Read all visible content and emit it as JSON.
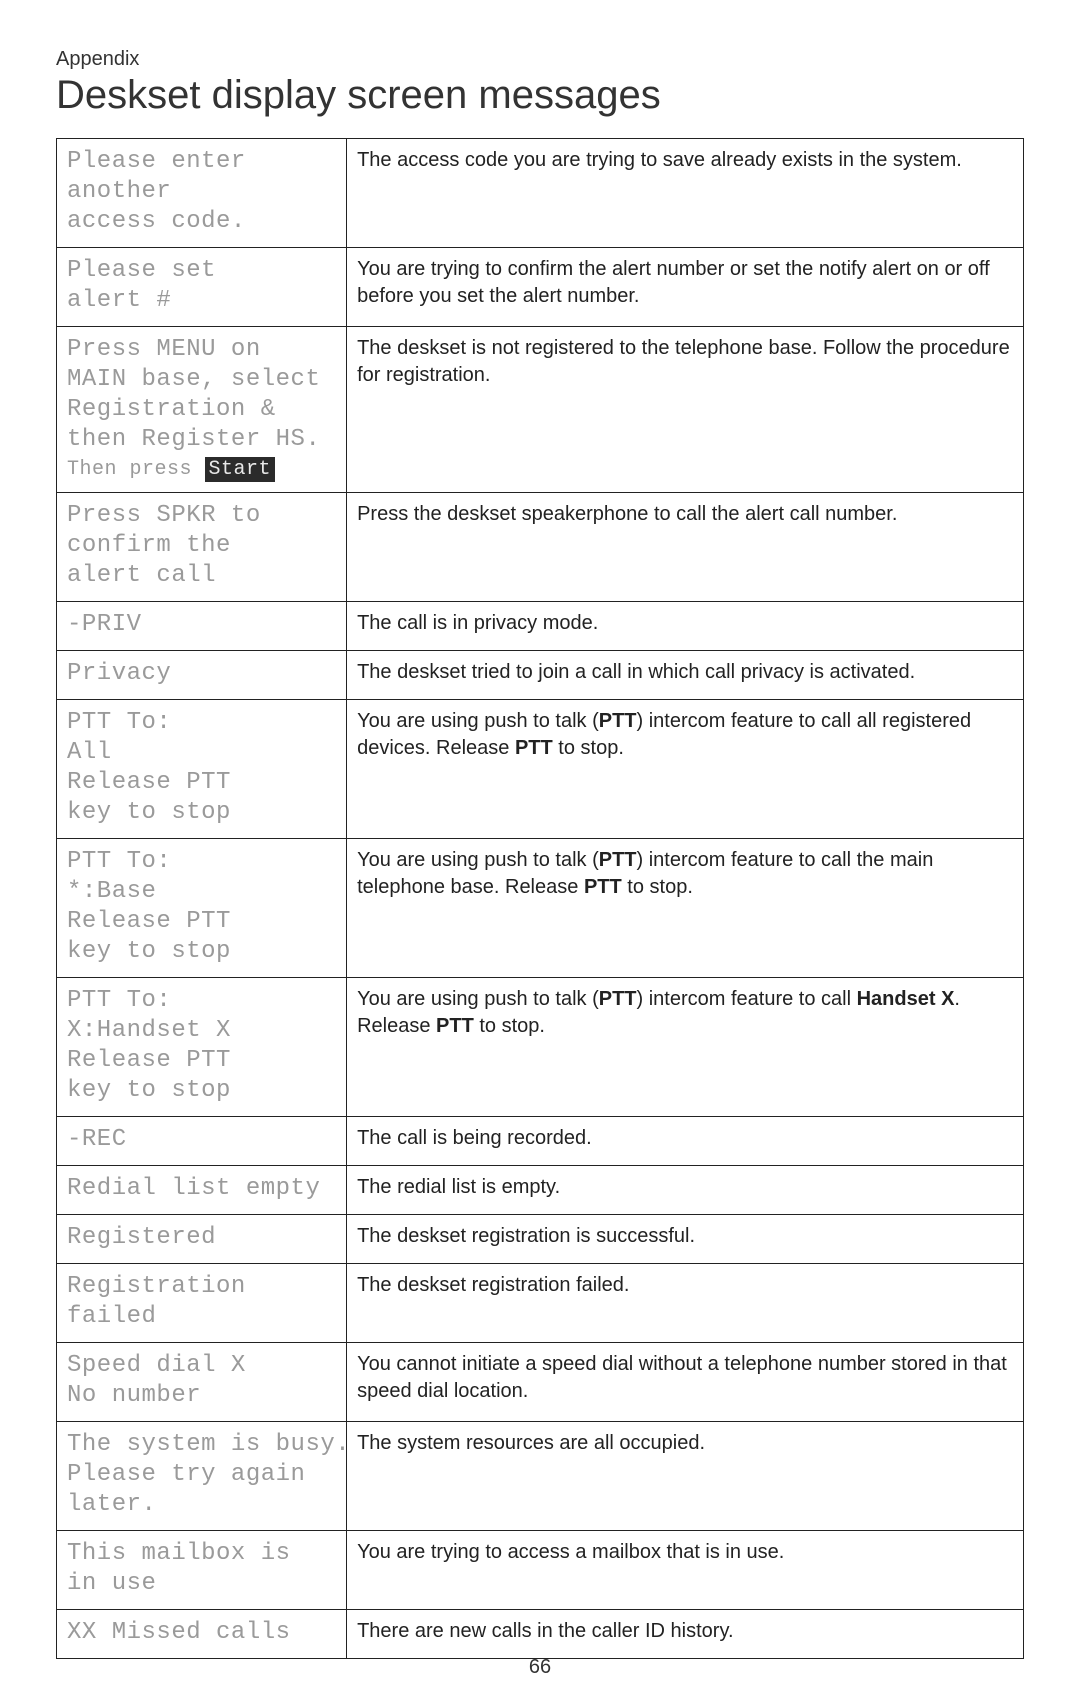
{
  "header": {
    "section_label": "Appendix",
    "page_title": "Deskset display screen messages"
  },
  "page_number": "66",
  "colors": {
    "text": "#222222",
    "lcd_text": "#9a9a9a",
    "border": "#222222",
    "inverse_bg": "#2b2b2b",
    "inverse_text": "#e8e8e8",
    "background": "#ffffff"
  },
  "typography": {
    "title_fontsize_pt": 30,
    "body_fontsize_pt": 15,
    "lcd_fontsize_pt": 18,
    "lcd_font_family": "Courier New (dot-matrix style)",
    "body_font_family": "Helvetica"
  },
  "table": {
    "column_widths_pct": [
      30,
      70
    ],
    "rows": [
      {
        "message_lines": [
          "Please enter",
          "another",
          "access code."
        ],
        "description_html": "The access code you are trying to save already exists in the system."
      },
      {
        "message_lines": [
          "Please set",
          "alert #"
        ],
        "description_html": "You are trying to confirm the alert number or set the notify alert on or off before you set the alert number."
      },
      {
        "message_lines": [
          "Press MENU on",
          "MAIN base, select",
          "Registration &",
          "then Register HS."
        ],
        "message_subline_prefix": "Then press ",
        "message_subline_inverse": "Start",
        "description_html": "The deskset is not registered to the telephone base. Follow the procedure for registration."
      },
      {
        "message_lines": [
          "Press SPKR to",
          "confirm the",
          "alert call"
        ],
        "description_html": "Press the deskset speakerphone to call the alert call number."
      },
      {
        "message_lines": [
          "-PRIV"
        ],
        "description_html": "The call is in privacy mode."
      },
      {
        "message_lines": [
          "Privacy"
        ],
        "description_html": "The deskset tried to join a call in which call privacy is activated."
      },
      {
        "message_lines": [
          "PTT To:",
          "All",
          "Release PTT",
          "key to stop"
        ],
        "description_html": "You are using push to talk (<b>PTT</b>) intercom feature to call all registered devices. Release <b>PTT</b> to stop."
      },
      {
        "message_lines": [
          "PTT To:",
          "*:Base",
          "Release PTT",
          "key to stop"
        ],
        "description_html": "You are using push to talk (<b>PTT</b>) intercom feature to call the main telephone base. Release <b>PTT</b> to stop."
      },
      {
        "message_lines": [
          "PTT To:",
          "X:Handset X",
          "Release PTT",
          "key to stop"
        ],
        "description_html": "You are using push to talk (<b>PTT</b>) intercom feature to call <b>Handset X</b>. Release <b>PTT</b> to stop."
      },
      {
        "message_lines": [
          "-REC"
        ],
        "description_html": "The call is being recorded."
      },
      {
        "message_lines": [
          "Redial list empty"
        ],
        "description_html": "The redial list is empty."
      },
      {
        "message_lines": [
          "Registered"
        ],
        "description_html": "The deskset registration is successful."
      },
      {
        "message_lines": [
          "Registration",
          "failed"
        ],
        "description_html": "The deskset registration failed."
      },
      {
        "message_lines": [
          "Speed dial X",
          "No number"
        ],
        "description_html": "You cannot initiate a speed dial without a telephone number stored in that speed dial location."
      },
      {
        "message_lines": [
          "The system is busy.",
          "Please try again",
          "later."
        ],
        "description_html": "The system resources are all occupied."
      },
      {
        "message_lines": [
          "This mailbox is",
          "in use"
        ],
        "description_html": "You are trying to access a mailbox that is in use."
      },
      {
        "message_lines": [
          "XX Missed calls"
        ],
        "description_html": "There are new calls in the caller ID history."
      }
    ]
  }
}
